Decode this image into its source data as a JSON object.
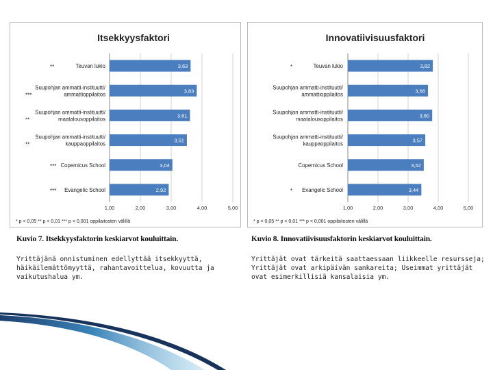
{
  "chart_data": [
    {
      "type": "bar",
      "orientation": "horizontal",
      "title": "Itsekkyysfaktori",
      "categories": [
        "Teuvan lukio",
        "Suupohjan ammatti-instituutti/ ammattioppilaitos",
        "Suupohjan ammatti-instituutti/ maatalousoppilaitos",
        "Suupohjan ammatti-instituutti/ kauppaoppilaitos",
        "Copernicus School",
        "Evangelic School"
      ],
      "category_lines": [
        [
          "Teuvan lukio"
        ],
        [
          "Suupohjan ammatti-instituutti/",
          "ammattioppilaitos"
        ],
        [
          "Suupohjan ammatti-instituutti/",
          "maatalousoppilaitos"
        ],
        [
          "Suupohjan ammatti-instituutti/",
          "kauppaoppilaitos"
        ],
        [
          "Copernicus School"
        ],
        [
          "Evangelic School"
        ]
      ],
      "values": [
        3.63,
        3.83,
        3.61,
        3.51,
        3.04,
        2.92
      ],
      "value_labels": [
        "3,63",
        "3,83",
        "3,61",
        "3,51",
        "3,04",
        "2,92"
      ],
      "significance": [
        "**",
        "***",
        "**",
        "**",
        "***",
        "***"
      ],
      "xlim": [
        1.0,
        5.0
      ],
      "xticks": [
        "1,00",
        "2,00",
        "3,00",
        "4,00",
        "5,00"
      ],
      "grid": true,
      "footnote": "* p < 0,05 ** p < 0,01 *** p < 0,001 oppilaitosten välillä",
      "bar_color": "#4a7ebf"
    },
    {
      "type": "bar",
      "orientation": "horizontal",
      "title": "Innovatiivisuusfaktori",
      "categories": [
        "Teuvan lukio",
        "Suupohjan ammatti-instituutti/ ammattioppilaitos",
        "Suupohjan ammatti-instituutti/ maatalousoppilaitos",
        "Suupohjan ammatti-instituutti/ kauppaoppilaitos",
        "Copernicus School",
        "Evangelic School"
      ],
      "category_lines": [
        [
          "Teuvan lukio"
        ],
        [
          "Suupohjan ammatti-instituutti/",
          "ammattioppilaitos"
        ],
        [
          "Suupohjan ammatti-instituutti/",
          "maatalousoppilaitos"
        ],
        [
          "Suupohjan ammatti-instituutti/",
          "kauppaoppilaitos"
        ],
        [
          "Copernicus School"
        ],
        [
          "Evangelic School"
        ]
      ],
      "values": [
        3.82,
        3.66,
        3.8,
        3.57,
        3.52,
        3.44
      ],
      "value_labels": [
        "3,82",
        "3,66",
        "3,80",
        "3,57",
        "3,52",
        "3,44"
      ],
      "significance": [
        "*",
        "",
        "",
        "",
        "",
        "*"
      ],
      "xlim": [
        1.0,
        5.0
      ],
      "xticks": [
        "1,00",
        "2,00",
        "3,00",
        "4,00",
        "5,00"
      ],
      "grid": true,
      "footnote": "* p < 0,05 ** p < 0,01 *** p < 0,001 oppilaitosten välillä",
      "bar_color": "#4a7ebf"
    }
  ],
  "captions": {
    "left": "Kuvio 7. Itsekkyysfaktorin keskiarvot kouluittain.",
    "right": "Kuvio 8. Innovatiivisuusfaktorin keskiarvot kouluittain."
  },
  "descriptions": {
    "left": "Yrittäjänä onnistuminen edellyttää itsekkyyttä, häikäilemättömyyttä, rahantavoittelua, kovuutta ja vaikutushalua ym.",
    "right": "Yrittäjät ovat tärkeitä saattaessaan liikkeelle resursseja; Yrittäjät ovat arkipäivän sankareita; Useimmat yrittäjät ovat esimerkillisiä kansalaisia ym."
  }
}
